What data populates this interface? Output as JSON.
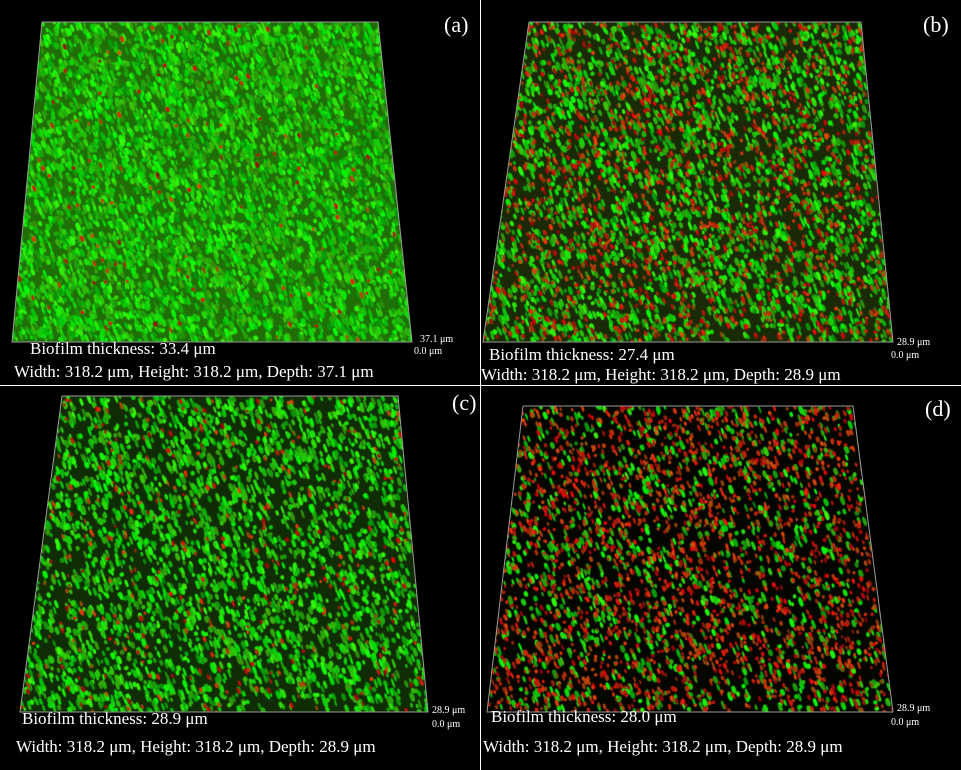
{
  "panels": [
    {
      "letter": "(a)",
      "thickness": "Biofilm thickness: 33.4 μm",
      "dimensions": "Width: 318.2 μm, Height: 318.2 μm, Depth: 37.1 μm",
      "z_top": "37.1 μm",
      "z_bottom": "0.0 μm",
      "green_density": 0.9,
      "red_density": 0.02,
      "base_color": "#1f6e06"
    },
    {
      "letter": "(b)",
      "thickness": "Biofilm thickness: 27.4 μm",
      "dimensions": "Width: 318.2 μm, Height: 318.2 μm, Depth: 28.9 μm",
      "z_top": "28.9 μm",
      "z_bottom": "0.0 μm",
      "green_density": 0.45,
      "red_density": 0.25,
      "base_color": "#1a2a06"
    },
    {
      "letter": "(c)",
      "thickness": "Biofilm thickness: 28.9 μm",
      "dimensions": "Width: 318.2 μm, Height: 318.2 μm, Depth: 28.9 μm",
      "z_top": "28.9 μm",
      "z_bottom": "0.0 μm",
      "green_density": 0.5,
      "red_density": 0.06,
      "base_color": "#102c04"
    },
    {
      "letter": "(d)",
      "thickness": "Biofilm thickness: 28.0 μm",
      "dimensions": "Width: 318.2 μm, Height: 318.2 μm, Depth: 28.9 μm",
      "z_top": "28.9 μm",
      "z_bottom": "0.0 μm",
      "green_density": 0.2,
      "red_density": 0.35,
      "base_color": "#050500"
    }
  ]
}
